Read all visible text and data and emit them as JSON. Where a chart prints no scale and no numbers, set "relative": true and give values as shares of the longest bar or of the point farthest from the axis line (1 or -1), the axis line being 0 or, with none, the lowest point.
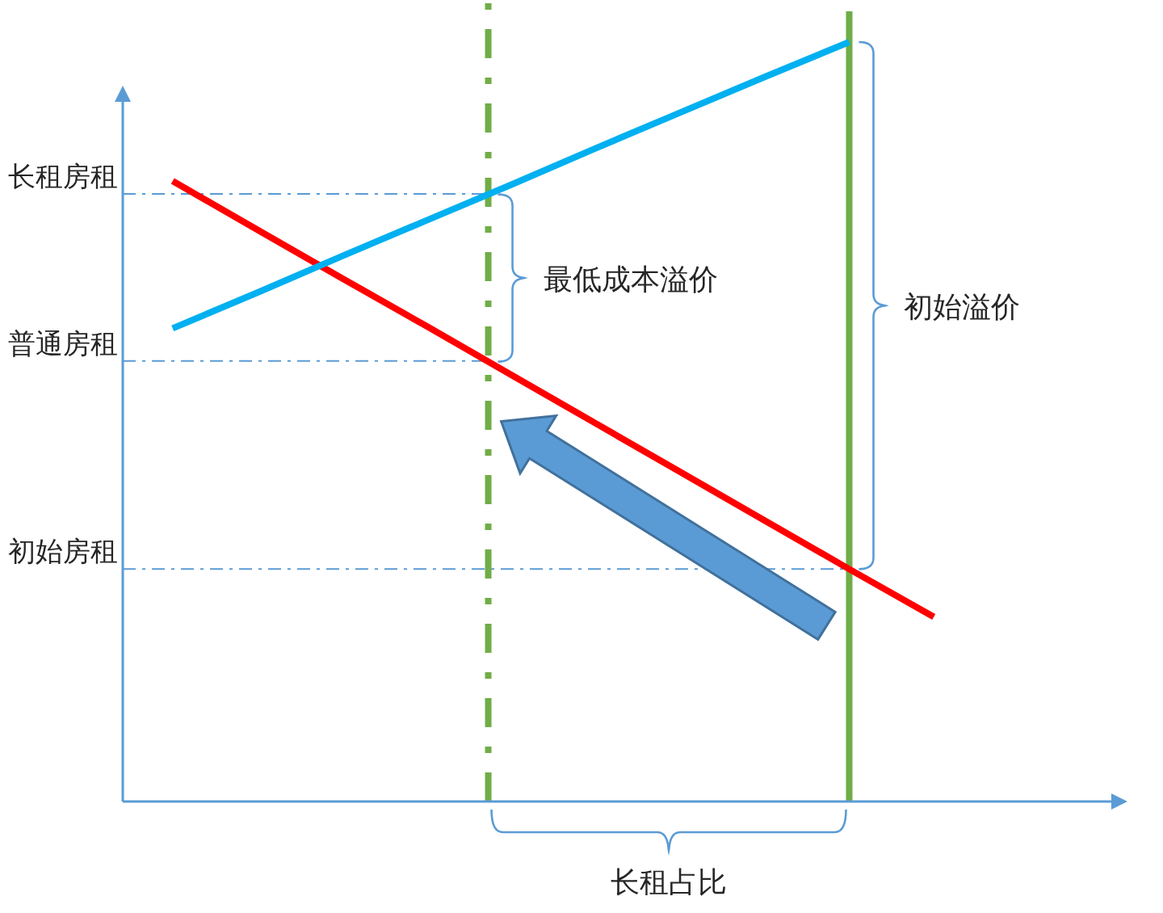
{
  "chart_data": {
    "type": "line",
    "relative": true,
    "tick_labels": false,
    "categories": [
      null,
      null,
      null,
      null,
      null,
      null,
      null,
      null,
      null,
      null
    ],
    "series": [
      {
        "color": "#ff0000",
        "values": [
          0.817,
          0.753,
          0.689,
          0.626,
          0.562,
          0.498,
          0.434,
          0.37,
          0.306,
          0.243
        ]
      },
      {
        "color": "#00b0f0",
        "values": [
          0.623,
          0.67,
          0.718,
          0.765,
          0.812,
          0.86,
          0.907,
          0.954,
          1,
          null
        ]
      }
    ],
    "ref_lines": [
      {
        "axis": "y",
        "value": 0.8,
        "label": "长租房租",
        "color": "#5b9bd5",
        "line_style": "dashdot"
      },
      {
        "axis": "y",
        "value": 0.58,
        "label": "普通房租",
        "color": "#5b9bd5",
        "line_style": "dashdot"
      },
      {
        "axis": "y",
        "value": 0.306,
        "label": "初始房租",
        "color": "#5b9bd5",
        "line_style": "dashdot"
      }
    ],
    "annotations": [
      "最低成本溢价",
      "初始溢价",
      "长租占比"
    ]
  }
}
